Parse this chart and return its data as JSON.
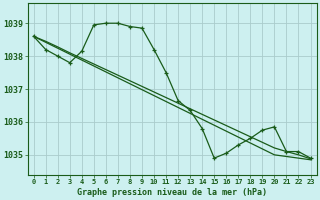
{
  "title": "Graphe pression niveau de la mer (hPa)",
  "background_color": "#cdf0f0",
  "grid_color": "#aacccc",
  "line_color": "#1a5c1a",
  "x_ticks": [
    0,
    1,
    2,
    3,
    4,
    5,
    6,
    7,
    8,
    9,
    10,
    11,
    12,
    13,
    14,
    15,
    16,
    17,
    18,
    19,
    20,
    21,
    22,
    23
  ],
  "ylim": [
    1034.4,
    1039.6
  ],
  "yticks": [
    1035,
    1036,
    1037,
    1038,
    1039
  ],
  "y_main": [
    1038.6,
    1038.2,
    1038.0,
    1037.8,
    1038.15,
    1038.95,
    1039.0,
    1039.0,
    1038.9,
    1038.85,
    1038.2,
    1037.5,
    1036.65,
    1036.35,
    1035.8,
    1034.9,
    1035.05,
    1035.3,
    1035.5,
    1035.75,
    1035.85,
    1035.1,
    1035.1,
    1034.9
  ],
  "y_diag1": [
    1038.6,
    1038.45,
    1038.28,
    1038.1,
    1037.93,
    1037.76,
    1037.59,
    1037.42,
    1037.25,
    1037.08,
    1036.91,
    1036.74,
    1036.57,
    1036.4,
    1036.23,
    1036.06,
    1035.89,
    1035.72,
    1035.55,
    1035.38,
    1035.21,
    1035.1,
    1035.0,
    1034.88
  ],
  "y_diag2": [
    1038.6,
    1038.42,
    1038.24,
    1038.06,
    1037.88,
    1037.7,
    1037.52,
    1037.34,
    1037.16,
    1036.98,
    1036.8,
    1036.62,
    1036.44,
    1036.26,
    1036.08,
    1035.9,
    1035.72,
    1035.54,
    1035.36,
    1035.18,
    1035.0,
    1034.95,
    1034.9,
    1034.85
  ]
}
